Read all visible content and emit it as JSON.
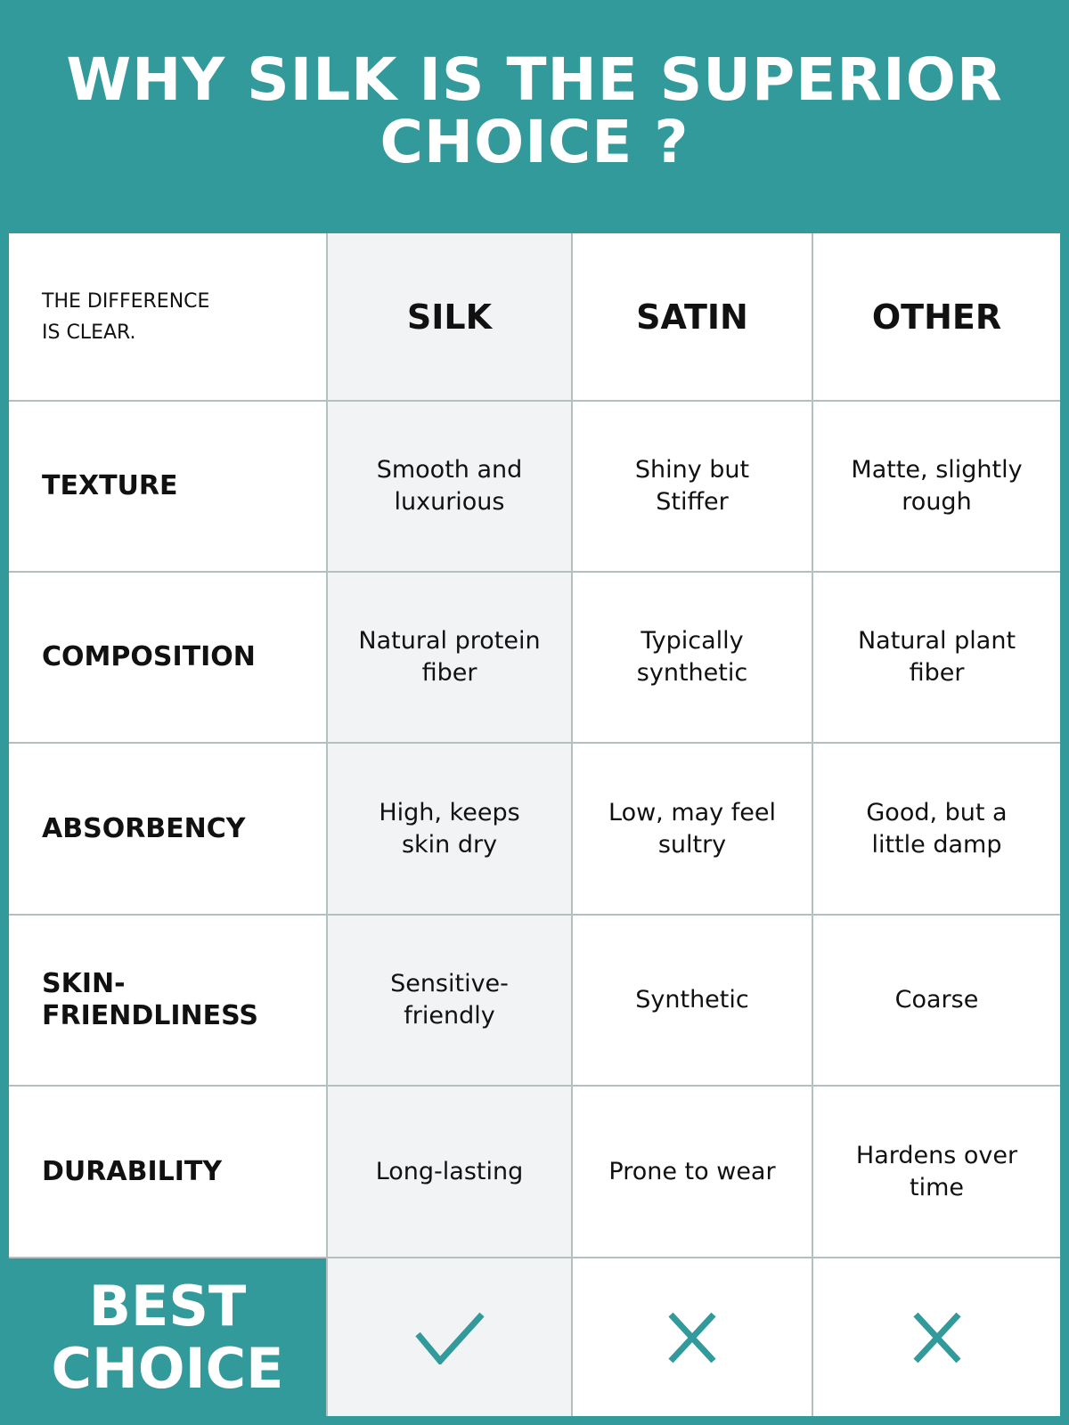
{
  "title": "WHY SILK IS THE SUPERIOR CHOICE ?",
  "corner_label": "THE DIFFERENCE IS CLEAR.",
  "columns": [
    "SILK",
    "SATIN",
    "OTHER"
  ],
  "rows": [
    {
      "label": "TEXTURE",
      "values": [
        "Smooth and luxurious",
        "Shiny but Stiffer",
        "Matte, slightly rough"
      ]
    },
    {
      "label": "COMPOSITION",
      "values": [
        "Natural protein fiber",
        "Typically synthetic",
        "Natural plant fiber"
      ]
    },
    {
      "label": "ABSORBENCY",
      "values": [
        "High, keeps skin dry",
        "Low, may feel sultry",
        "Good, but a little damp"
      ]
    },
    {
      "label": "SKIN-FRIENDLINESS",
      "values": [
        "Sensitive-friendly",
        "Synthetic",
        "Coarse"
      ]
    },
    {
      "label": "DURABILITY",
      "values": [
        "Long-lasting",
        "Prone to wear",
        "Hardens over time"
      ]
    }
  ],
  "best_choice": {
    "label": "BEST CHOICE",
    "icons": [
      "check-icon",
      "cross-icon",
      "cross-icon"
    ]
  },
  "colors": {
    "accent": "#339a9b",
    "silk_column": "#f1f3f4",
    "grid": "#b4c0c0"
  }
}
